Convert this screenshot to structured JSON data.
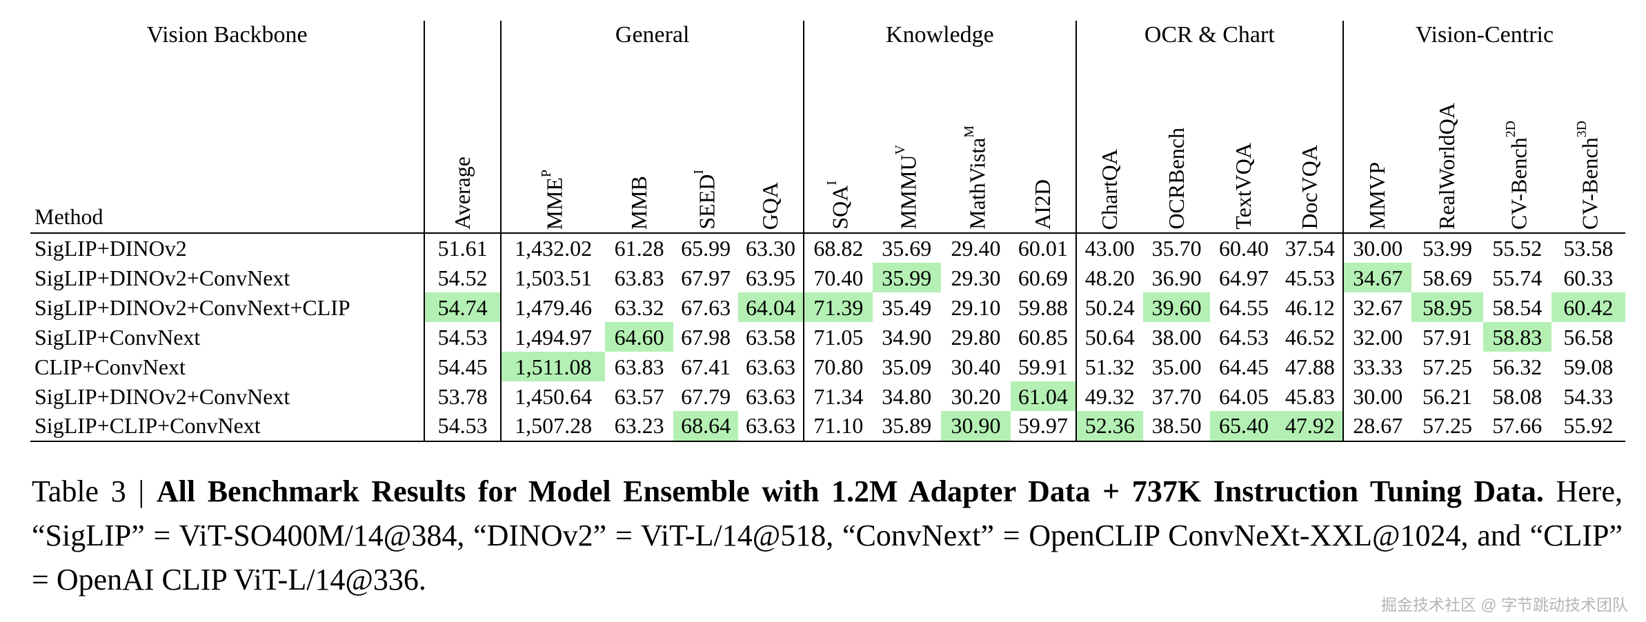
{
  "colors": {
    "highlight": "#b4f0b4"
  },
  "table": {
    "groups": [
      {
        "label": "Vision Backbone",
        "span": 1
      },
      {
        "label": "",
        "span": 1
      },
      {
        "label": "General",
        "span": 4
      },
      {
        "label": "Knowledge",
        "span": 4
      },
      {
        "label": "OCR & Chart",
        "span": 4
      },
      {
        "label": "Vision-Centric",
        "span": 4
      }
    ],
    "method_header": "Method",
    "columns": [
      {
        "label": "Average",
        "sup": ""
      },
      {
        "label": "MME",
        "sup": "P"
      },
      {
        "label": "MMB",
        "sup": ""
      },
      {
        "label": "SEED",
        "sup": "I"
      },
      {
        "label": "GQA",
        "sup": ""
      },
      {
        "label": "SQA",
        "sup": "I"
      },
      {
        "label": "MMMU",
        "sup": "V"
      },
      {
        "label": "MathVista",
        "sup": "M"
      },
      {
        "label": "AI2D",
        "sup": ""
      },
      {
        "label": "ChartQA",
        "sup": ""
      },
      {
        "label": "OCRBench",
        "sup": ""
      },
      {
        "label": "TextVQA",
        "sup": ""
      },
      {
        "label": "DocVQA",
        "sup": ""
      },
      {
        "label": "MMVP",
        "sup": ""
      },
      {
        "label": "RealWorldQA",
        "sup": ""
      },
      {
        "label": "CV-Bench",
        "sup": "2D"
      },
      {
        "label": "CV-Bench",
        "sup": "3D"
      }
    ],
    "rows": [
      {
        "method": "SigLIP+DINOv2",
        "values": [
          "51.61",
          "1,432.02",
          "61.28",
          "65.99",
          "63.30",
          "68.82",
          "35.69",
          "29.40",
          "60.01",
          "43.00",
          "35.70",
          "60.40",
          "37.54",
          "30.00",
          "53.99",
          "55.52",
          "53.58"
        ],
        "highlight": []
      },
      {
        "method": "SigLIP+DINOv2+ConvNext",
        "values": [
          "54.52",
          "1,503.51",
          "63.83",
          "67.97",
          "63.95",
          "70.40",
          "35.99",
          "29.30",
          "60.69",
          "48.20",
          "36.90",
          "64.97",
          "45.53",
          "34.67",
          "58.69",
          "55.74",
          "60.33"
        ],
        "highlight": [
          6,
          13
        ]
      },
      {
        "method": "SigLIP+DINOv2+ConvNext+CLIP",
        "values": [
          "54.74",
          "1,479.46",
          "63.32",
          "67.63",
          "64.04",
          "71.39",
          "35.49",
          "29.10",
          "59.88",
          "50.24",
          "39.60",
          "64.55",
          "46.12",
          "32.67",
          "58.95",
          "58.54",
          "60.42"
        ],
        "highlight": [
          0,
          4,
          5,
          10,
          14,
          16
        ]
      },
      {
        "method": "SigLIP+ConvNext",
        "values": [
          "54.53",
          "1,494.97",
          "64.60",
          "67.98",
          "63.58",
          "71.05",
          "34.90",
          "29.80",
          "60.85",
          "50.64",
          "38.00",
          "64.53",
          "46.52",
          "32.00",
          "57.91",
          "58.83",
          "56.58"
        ],
        "highlight": [
          2,
          15
        ]
      },
      {
        "method": "CLIP+ConvNext",
        "values": [
          "54.45",
          "1,511.08",
          "63.83",
          "67.41",
          "63.63",
          "70.80",
          "35.09",
          "30.40",
          "59.91",
          "51.32",
          "35.00",
          "64.45",
          "47.88",
          "33.33",
          "57.25",
          "56.32",
          "59.08"
        ],
        "highlight": [
          1
        ]
      },
      {
        "method": "SigLIP+DINOv2+ConvNext",
        "values": [
          "53.78",
          "1,450.64",
          "63.57",
          "67.79",
          "63.63",
          "71.34",
          "34.80",
          "30.20",
          "61.04",
          "49.32",
          "37.70",
          "64.05",
          "45.83",
          "30.00",
          "56.21",
          "58.08",
          "54.33"
        ],
        "highlight": [
          8
        ]
      },
      {
        "method": "SigLIP+CLIP+ConvNext",
        "values": [
          "54.53",
          "1,507.28",
          "63.23",
          "68.64",
          "63.63",
          "71.10",
          "35.89",
          "30.90",
          "59.97",
          "52.36",
          "38.50",
          "65.40",
          "47.92",
          "28.67",
          "57.25",
          "57.66",
          "55.92"
        ],
        "highlight": [
          3,
          7,
          9,
          11,
          12
        ]
      }
    ]
  },
  "caption": {
    "prefix": "Table 3 | ",
    "bold": "All Benchmark Results for Model Ensemble with 1.2M Adapter Data + 737K Instruction Tuning Data.",
    "rest": " Here, “SigLIP” = ViT-SO400M/14@384, “DINOv2” = ViT-L/14@518, “ConvNext” = OpenCLIP ConvNeXt-XXL@1024, and “CLIP” = OpenAI CLIP ViT-L/14@336."
  },
  "watermark": "掘金技术社区 @ 字节跳动技术团队"
}
